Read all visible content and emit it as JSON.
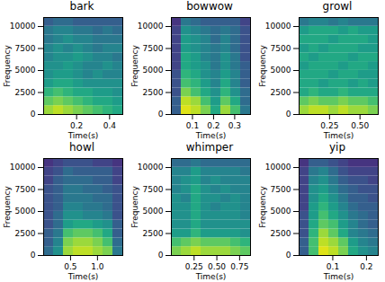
{
  "chart_data": [
    {
      "type": "heatmap",
      "title": "bark",
      "xlabel": "Time(s)",
      "ylabel": "Frequency",
      "xlim": [
        0,
        0.48
      ],
      "xticks": [
        0.2,
        0.4
      ],
      "ylim": [
        0,
        11025
      ],
      "yticks": [
        0,
        2500,
        5000,
        7500,
        10000
      ],
      "color": "viridis",
      "clim": [
        0,
        1
      ],
      "cells": [
        [
          0.85,
          0.9,
          0.85,
          0.8,
          0.75,
          0.7,
          0.65,
          0.6
        ],
        [
          0.75,
          0.8,
          0.75,
          0.7,
          0.65,
          0.6,
          0.6,
          0.55
        ],
        [
          0.65,
          0.7,
          0.65,
          0.6,
          0.6,
          0.55,
          0.55,
          0.5
        ],
        [
          0.55,
          0.6,
          0.6,
          0.55,
          0.5,
          0.5,
          0.5,
          0.5
        ],
        [
          0.5,
          0.55,
          0.55,
          0.5,
          0.45,
          0.5,
          0.45,
          0.45
        ],
        [
          0.5,
          0.5,
          0.55,
          0.5,
          0.45,
          0.45,
          0.5,
          0.45
        ],
        [
          0.45,
          0.5,
          0.5,
          0.55,
          0.5,
          0.45,
          0.45,
          0.4
        ],
        [
          0.45,
          0.5,
          0.45,
          0.5,
          0.45,
          0.4,
          0.45,
          0.45
        ],
        [
          0.4,
          0.45,
          0.5,
          0.45,
          0.45,
          0.4,
          0.4,
          0.4
        ],
        [
          0.4,
          0.45,
          0.45,
          0.4,
          0.4,
          0.35,
          0.4,
          0.35
        ],
        [
          0.3,
          0.35,
          0.35,
          0.3,
          0.3,
          0.3,
          0.3,
          0.3
        ]
      ]
    },
    {
      "type": "heatmap",
      "title": "bowwow",
      "xlabel": "Time(s)",
      "ylabel": "Frequency",
      "xlim": [
        0,
        0.375
      ],
      "xticks": [
        0.1,
        0.2,
        0.3
      ],
      "ylim": [
        0,
        11025
      ],
      "yticks": [
        0,
        2500,
        5000,
        7500,
        10000
      ],
      "color": "viridis",
      "clim": [
        0,
        1
      ],
      "cells": [
        [
          0.3,
          0.95,
          0.9,
          0.8,
          0.6,
          0.85,
          0.7,
          0.4
        ],
        [
          0.3,
          0.9,
          0.85,
          0.7,
          0.55,
          0.75,
          0.6,
          0.35
        ],
        [
          0.25,
          0.8,
          0.7,
          0.6,
          0.5,
          0.65,
          0.5,
          0.35
        ],
        [
          0.25,
          0.7,
          0.65,
          0.55,
          0.45,
          0.6,
          0.45,
          0.3
        ],
        [
          0.25,
          0.65,
          0.6,
          0.5,
          0.45,
          0.55,
          0.45,
          0.3
        ],
        [
          0.2,
          0.6,
          0.55,
          0.5,
          0.4,
          0.5,
          0.4,
          0.3
        ],
        [
          0.2,
          0.6,
          0.55,
          0.45,
          0.4,
          0.5,
          0.4,
          0.25
        ],
        [
          0.2,
          0.55,
          0.5,
          0.45,
          0.4,
          0.45,
          0.35,
          0.25
        ],
        [
          0.2,
          0.55,
          0.5,
          0.45,
          0.35,
          0.45,
          0.35,
          0.25
        ],
        [
          0.2,
          0.5,
          0.45,
          0.4,
          0.35,
          0.4,
          0.35,
          0.25
        ],
        [
          0.15,
          0.4,
          0.35,
          0.3,
          0.3,
          0.3,
          0.3,
          0.2
        ]
      ]
    },
    {
      "type": "heatmap",
      "title": "growl",
      "xlabel": "Time(s)",
      "ylabel": "Frequency",
      "xlim": [
        0,
        0.65
      ],
      "xticks": [
        0.25,
        {
          "value": 0.5,
          "label": "0.50"
        }
      ],
      "ylim": [
        0,
        11025
      ],
      "yticks": [
        0,
        2500,
        5000,
        7500,
        10000
      ],
      "color": "viridis",
      "clim": [
        0,
        1
      ],
      "cells": [
        [
          0.85,
          0.9,
          0.9,
          0.85,
          0.9,
          0.85,
          0.85,
          0.8
        ],
        [
          0.75,
          0.8,
          0.75,
          0.75,
          0.8,
          0.75,
          0.75,
          0.7
        ],
        [
          0.6,
          0.65,
          0.6,
          0.6,
          0.65,
          0.6,
          0.6,
          0.6
        ],
        [
          0.6,
          0.6,
          0.55,
          0.6,
          0.6,
          0.55,
          0.6,
          0.55
        ],
        [
          0.6,
          0.6,
          0.6,
          0.55,
          0.6,
          0.6,
          0.55,
          0.55
        ],
        [
          0.55,
          0.6,
          0.6,
          0.6,
          0.55,
          0.6,
          0.6,
          0.55
        ],
        [
          0.6,
          0.55,
          0.6,
          0.6,
          0.6,
          0.55,
          0.6,
          0.6
        ],
        [
          0.55,
          0.6,
          0.55,
          0.6,
          0.6,
          0.6,
          0.55,
          0.55
        ],
        [
          0.6,
          0.6,
          0.6,
          0.55,
          0.6,
          0.6,
          0.6,
          0.55
        ],
        [
          0.55,
          0.6,
          0.6,
          0.6,
          0.55,
          0.6,
          0.55,
          0.55
        ],
        [
          0.4,
          0.45,
          0.45,
          0.4,
          0.45,
          0.4,
          0.4,
          0.4
        ]
      ]
    },
    {
      "type": "heatmap",
      "title": "howl",
      "xlabel": "Time(s)",
      "ylabel": "Frequency",
      "xlim": [
        0,
        1.47
      ],
      "xticks": [
        0.5,
        {
          "value": 1,
          "label": "1.0"
        }
      ],
      "ylim": [
        0,
        11025
      ],
      "yticks": [
        0,
        2500,
        5000,
        7500,
        10000
      ],
      "color": "viridis",
      "clim": [
        0,
        1
      ],
      "cells": [
        [
          0.35,
          0.5,
          0.85,
          0.9,
          0.9,
          0.85,
          0.8,
          0.4
        ],
        [
          0.3,
          0.45,
          0.8,
          0.85,
          0.85,
          0.8,
          0.7,
          0.35
        ],
        [
          0.3,
          0.4,
          0.7,
          0.75,
          0.75,
          0.7,
          0.6,
          0.3
        ],
        [
          0.25,
          0.35,
          0.55,
          0.6,
          0.6,
          0.55,
          0.5,
          0.3
        ],
        [
          0.25,
          0.35,
          0.5,
          0.5,
          0.45,
          0.45,
          0.4,
          0.25
        ],
        [
          0.25,
          0.3,
          0.45,
          0.45,
          0.4,
          0.4,
          0.35,
          0.25
        ],
        [
          0.25,
          0.3,
          0.4,
          0.4,
          0.4,
          0.35,
          0.35,
          0.25
        ],
        [
          0.25,
          0.3,
          0.4,
          0.4,
          0.35,
          0.35,
          0.3,
          0.25
        ],
        [
          0.2,
          0.3,
          0.35,
          0.35,
          0.35,
          0.3,
          0.3,
          0.2
        ],
        [
          0.2,
          0.25,
          0.35,
          0.3,
          0.3,
          0.3,
          0.3,
          0.2
        ],
        [
          0.15,
          0.2,
          0.25,
          0.25,
          0.25,
          0.2,
          0.2,
          0.15
        ]
      ]
    },
    {
      "type": "heatmap",
      "title": "whimper",
      "xlabel": "Time(s)",
      "ylabel": "Frequency",
      "xlim": [
        0,
        0.87
      ],
      "xticks": [
        0.25,
        {
          "value": 0.5,
          "label": "0.50"
        },
        0.75
      ],
      "ylim": [
        0,
        11025
      ],
      "yticks": [
        0,
        2500,
        5000,
        7500,
        10000
      ],
      "color": "viridis",
      "clim": [
        0,
        1
      ],
      "cells": [
        [
          0.8,
          0.85,
          0.9,
          0.85,
          0.85,
          0.85,
          0.8,
          0.75
        ],
        [
          0.7,
          0.75,
          0.8,
          0.75,
          0.75,
          0.75,
          0.7,
          0.65
        ],
        [
          0.55,
          0.55,
          0.65,
          0.55,
          0.55,
          0.55,
          0.55,
          0.5
        ],
        [
          0.5,
          0.5,
          0.6,
          0.5,
          0.5,
          0.5,
          0.5,
          0.5
        ],
        [
          0.5,
          0.5,
          0.6,
          0.5,
          0.5,
          0.5,
          0.5,
          0.45
        ],
        [
          0.5,
          0.5,
          0.6,
          0.5,
          0.45,
          0.5,
          0.5,
          0.45
        ],
        [
          0.5,
          0.45,
          0.6,
          0.5,
          0.5,
          0.45,
          0.5,
          0.45
        ],
        [
          0.45,
          0.5,
          0.6,
          0.5,
          0.45,
          0.5,
          0.45,
          0.45
        ],
        [
          0.45,
          0.5,
          0.55,
          0.45,
          0.5,
          0.45,
          0.45,
          0.45
        ],
        [
          0.45,
          0.45,
          0.55,
          0.45,
          0.45,
          0.45,
          0.45,
          0.4
        ],
        [
          0.35,
          0.35,
          0.4,
          0.35,
          0.35,
          0.35,
          0.35,
          0.35
        ]
      ]
    },
    {
      "type": "heatmap",
      "title": "yip",
      "xlabel": "Time(s)",
      "ylabel": "Frequency",
      "xlim": [
        0,
        0.235
      ],
      "xticks": [
        0.1,
        0.2
      ],
      "ylim": [
        0,
        11025
      ],
      "yticks": [
        0,
        2500,
        5000,
        7500,
        10000
      ],
      "color": "viridis",
      "clim": [
        0,
        1
      ],
      "cells": [
        [
          0.3,
          0.7,
          0.95,
          0.9,
          0.8,
          0.6,
          0.5,
          0.45
        ],
        [
          0.3,
          0.7,
          0.9,
          0.85,
          0.75,
          0.55,
          0.45,
          0.4
        ],
        [
          0.25,
          0.65,
          0.85,
          0.75,
          0.6,
          0.45,
          0.4,
          0.35
        ],
        [
          0.25,
          0.6,
          0.75,
          0.7,
          0.55,
          0.45,
          0.35,
          0.3
        ],
        [
          0.25,
          0.55,
          0.7,
          0.6,
          0.5,
          0.4,
          0.35,
          0.3
        ],
        [
          0.2,
          0.55,
          0.65,
          0.55,
          0.45,
          0.35,
          0.3,
          0.3
        ],
        [
          0.2,
          0.5,
          0.6,
          0.5,
          0.4,
          0.3,
          0.3,
          0.25
        ],
        [
          0.2,
          0.5,
          0.55,
          0.45,
          0.35,
          0.3,
          0.25,
          0.25
        ],
        [
          0.2,
          0.45,
          0.5,
          0.4,
          0.3,
          0.25,
          0.25,
          0.2
        ],
        [
          0.2,
          0.4,
          0.45,
          0.35,
          0.25,
          0.2,
          0.2,
          0.2
        ],
        [
          0.15,
          0.3,
          0.3,
          0.25,
          0.2,
          0.15,
          0.15,
          0.15
        ]
      ]
    }
  ]
}
